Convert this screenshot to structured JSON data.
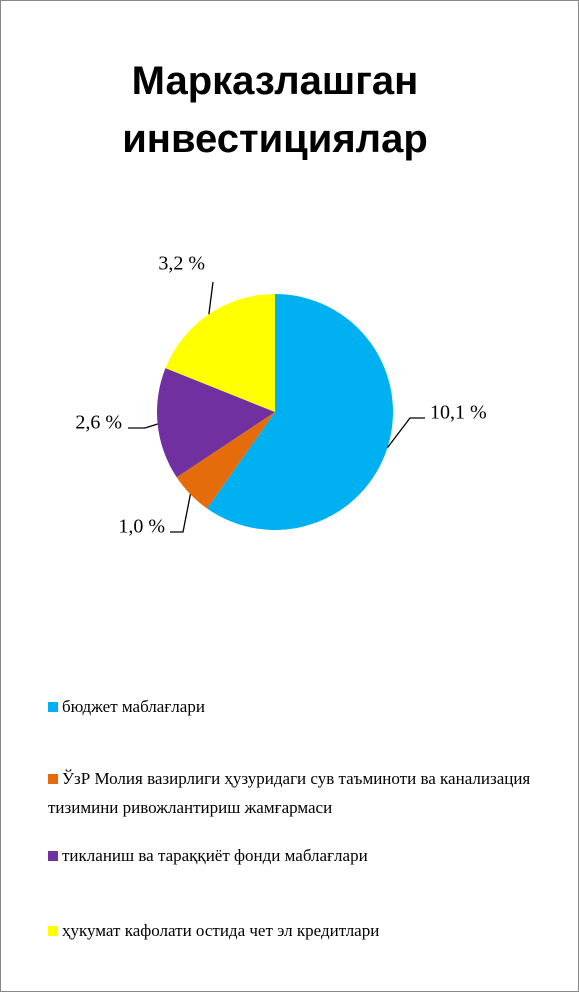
{
  "chart_data": {
    "type": "pie",
    "title": "Марказлашган инвестициялар",
    "categories": [
      "бюджет маблағлари",
      "ЎзР Молия вазирлиги ҳузуридаги сув таъминоти ва канализация тизимини ривожлантириш жамғармаси",
      "тикланиш ва тараққиёт фонди маблағлари",
      "ҳукумат кафолати остида чет эл кредитлари"
    ],
    "values": [
      10.1,
      1.0,
      2.6,
      3.2
    ],
    "value_labels": [
      "10,1 %",
      "1,0 %",
      "2,6 %",
      "3,2 %"
    ],
    "colors": [
      "#00b0f0",
      "#e46c0a",
      "#7030a0",
      "#ffff00"
    ],
    "legend": "bottom"
  }
}
